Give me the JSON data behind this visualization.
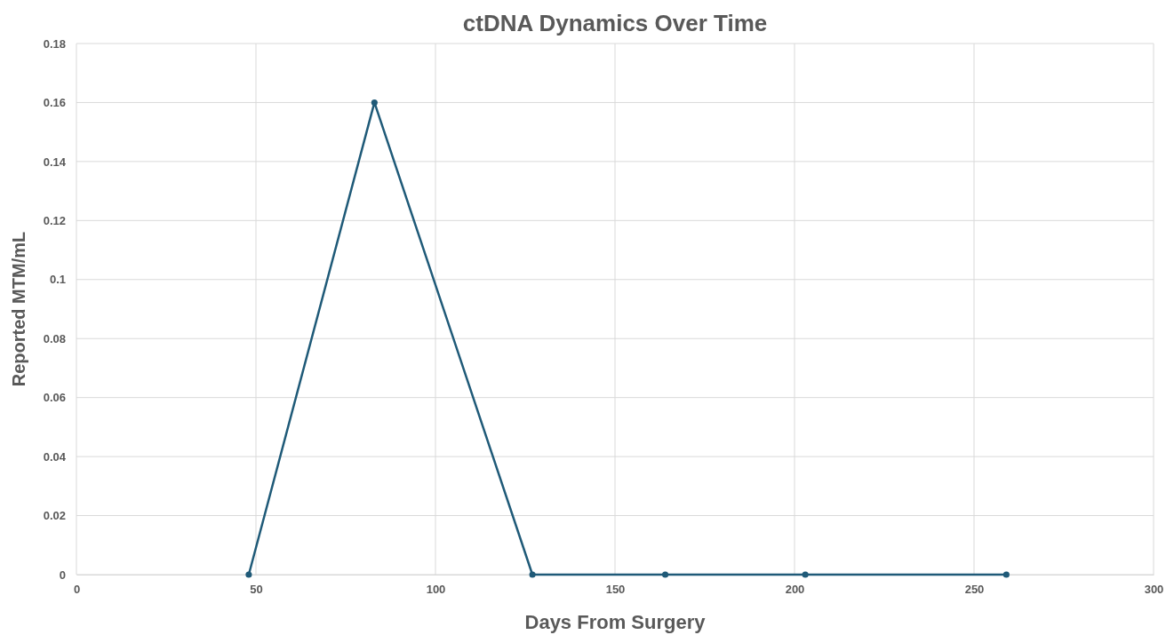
{
  "chart_data": {
    "type": "line",
    "title": "ctDNA Dynamics Over Time",
    "xlabel": "Days From Surgery",
    "ylabel": "Reported MTM/mL",
    "x": [
      48,
      83,
      127,
      164,
      203,
      259
    ],
    "series": [
      {
        "color": "#1f5a78",
        "values": [
          0,
          0.16,
          0,
          0,
          0,
          0
        ]
      }
    ],
    "xlim": [
      0,
      300
    ],
    "xticks": [
      0,
      50,
      100,
      150,
      200,
      250,
      300
    ],
    "ylim": [
      0,
      0.18
    ],
    "yticks": [
      0,
      0.02,
      0.04,
      0.06,
      0.08,
      0.1,
      0.12,
      0.14,
      0.16,
      0.18
    ],
    "grid": true,
    "marker": "circle",
    "line_style": "solid"
  }
}
